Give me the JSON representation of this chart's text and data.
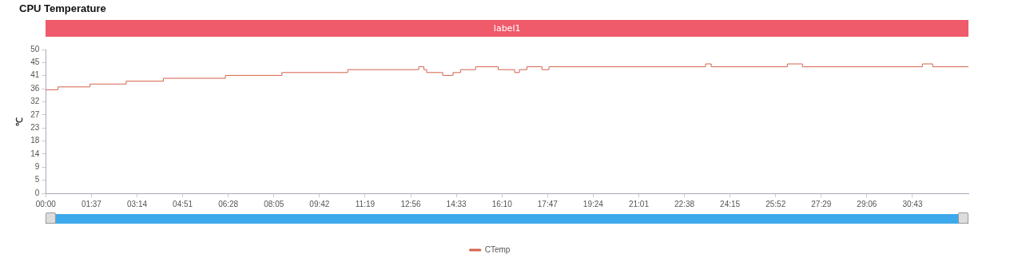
{
  "chart_data": {
    "type": "step",
    "title": "CPU Temperature",
    "ylabel": "℃",
    "annotations": [
      "label1"
    ],
    "x": [
      0,
      26,
      94,
      171,
      250,
      382,
      502,
      642,
      793,
      804,
      810,
      844,
      866,
      882,
      914,
      962,
      997,
      1007,
      1023,
      1055,
      1070,
      1403,
      1415,
      1577,
      1609,
      1864,
      1886,
      1962
    ],
    "series": [
      {
        "name": "CTemp",
        "color": "#d4634c",
        "values": [
          36,
          37,
          38,
          39,
          40,
          41,
          42,
          43,
          44,
          43,
          42,
          41,
          42,
          43,
          44,
          43,
          42,
          43,
          44,
          43,
          44,
          45,
          44,
          45,
          44,
          45,
          44,
          44
        ]
      }
    ],
    "xlim": [
      0,
      1962
    ],
    "xticks": [
      {
        "value": 0,
        "label": "00:00"
      },
      {
        "value": 97,
        "label": "01:37"
      },
      {
        "value": 194,
        "label": "03:14"
      },
      {
        "value": 291,
        "label": "04:51"
      },
      {
        "value": 388,
        "label": "06:28"
      },
      {
        "value": 485,
        "label": "08:05"
      },
      {
        "value": 582,
        "label": "09:42"
      },
      {
        "value": 679,
        "label": "11:19"
      },
      {
        "value": 776,
        "label": "12:56"
      },
      {
        "value": 873,
        "label": "14:33"
      },
      {
        "value": 970,
        "label": "16:10"
      },
      {
        "value": 1067,
        "label": "17:47"
      },
      {
        "value": 1164,
        "label": "19:24"
      },
      {
        "value": 1261,
        "label": "21:01"
      },
      {
        "value": 1358,
        "label": "22:38"
      },
      {
        "value": 1455,
        "label": "24:15"
      },
      {
        "value": 1552,
        "label": "25:52"
      },
      {
        "value": 1649,
        "label": "27:29"
      },
      {
        "value": 1746,
        "label": "29:06"
      },
      {
        "value": 1843,
        "label": "30:43"
      }
    ],
    "ylim": [
      0,
      50
    ],
    "yticks": [
      0,
      {
        "value": 4.545,
        "label": "5"
      },
      {
        "value": 9.091,
        "label": "9"
      },
      {
        "value": 13.636,
        "label": "14"
      },
      {
        "value": 18.182,
        "label": "18"
      },
      {
        "value": 22.727,
        "label": "23"
      },
      {
        "value": 27.273,
        "label": "27"
      },
      {
        "value": 31.818,
        "label": "32"
      },
      {
        "value": 36.364,
        "label": "36"
      },
      {
        "value": 40.909,
        "label": "41"
      },
      {
        "value": 45.455,
        "label": "45"
      },
      50
    ],
    "grid": false,
    "legend": "bottom",
    "marker": "none",
    "line_style": "solid"
  }
}
